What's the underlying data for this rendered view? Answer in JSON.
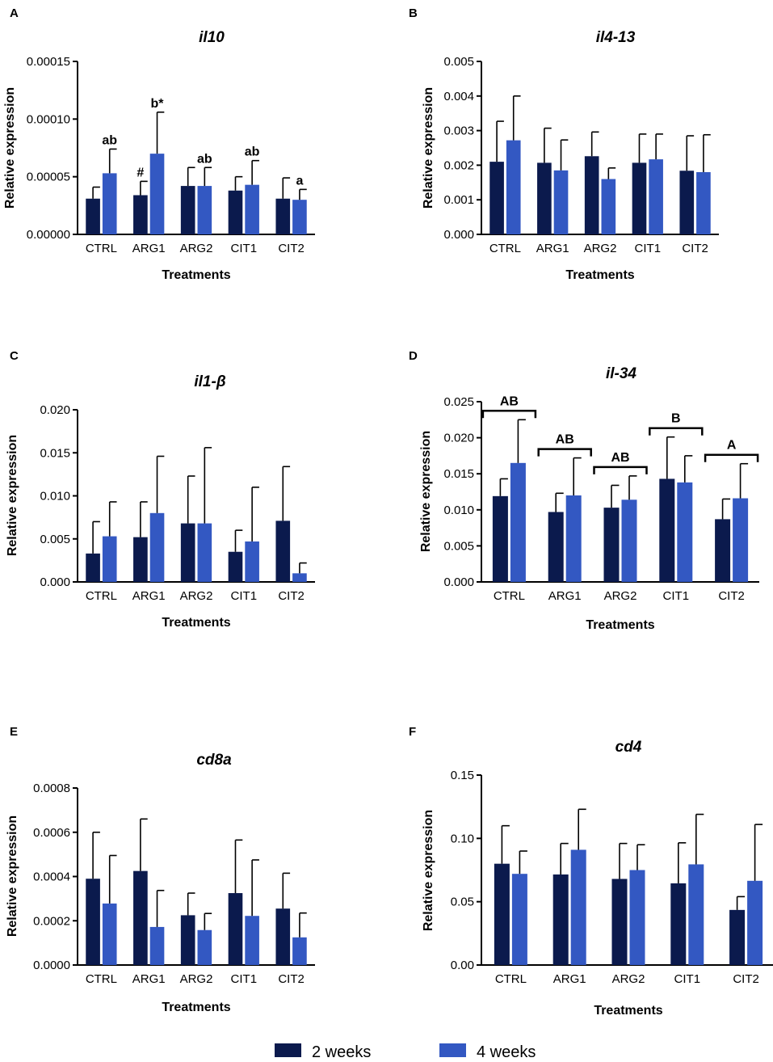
{
  "colors": {
    "two_weeks": "#0b1a4d",
    "four_weeks": "#3358c2",
    "axis": "#000000"
  },
  "chart_data": [
    {
      "panel": "A",
      "type": "bar",
      "title": "il10",
      "xlabel": "Treatments",
      "ylabel": "Relative expression",
      "categories": [
        "CTRL",
        "ARG1",
        "ARG2",
        "CIT1",
        "CIT2"
      ],
      "ylim": [
        0,
        0.00015
      ],
      "yticks": [
        "0.00000",
        "0.00005",
        "0.00010",
        "0.00015"
      ],
      "series": [
        {
          "name": "2 weeks",
          "values": [
            3.1e-05,
            3.4e-05,
            4.2e-05,
            3.8e-05,
            3.1e-05
          ],
          "errors": [
            1e-05,
            1.2e-05,
            1.6e-05,
            1.2e-05,
            1.8e-05
          ]
        },
        {
          "name": "4 weeks",
          "values": [
            5.3e-05,
            7e-05,
            4.2e-05,
            4.3e-05,
            3e-05
          ],
          "errors": [
            2.1e-05,
            3.6e-05,
            1.6e-05,
            2.1e-05,
            9e-06
          ]
        }
      ],
      "annotations": [
        {
          "category": "CTRL",
          "series": "4 weeks",
          "text": "ab"
        },
        {
          "category": "ARG1",
          "series": "2 weeks",
          "text": "#"
        },
        {
          "category": "ARG1",
          "series": "4 weeks",
          "text": "b*"
        },
        {
          "category": "ARG2",
          "series": "4 weeks",
          "text": "ab"
        },
        {
          "category": "CIT1",
          "series": "4 weeks",
          "text": "ab"
        },
        {
          "category": "CIT2",
          "series": "4 weeks",
          "text": "a"
        }
      ]
    },
    {
      "panel": "B",
      "type": "bar",
      "title": "il4-13",
      "xlabel": "Treatments",
      "ylabel": "Relative expression",
      "categories": [
        "CTRL",
        "ARG1",
        "ARG2",
        "CIT1",
        "CIT2"
      ],
      "ylim": [
        0,
        0.005
      ],
      "yticks": [
        "0.000",
        "0.001",
        "0.002",
        "0.003",
        "0.004",
        "0.005"
      ],
      "series": [
        {
          "name": "2 weeks",
          "values": [
            0.0021,
            0.00207,
            0.00226,
            0.00207,
            0.00184
          ],
          "errors": [
            0.00117,
            0.001,
            0.0007,
            0.00083,
            0.00101
          ]
        },
        {
          "name": "4 weeks",
          "values": [
            0.00272,
            0.00185,
            0.0016,
            0.00217,
            0.0018
          ],
          "errors": [
            0.00128,
            0.00088,
            0.00032,
            0.00073,
            0.00108
          ]
        }
      ],
      "annotations": []
    },
    {
      "panel": "C",
      "type": "bar",
      "title": "il1-β",
      "xlabel": "Treatments",
      "ylabel": "Relative expression",
      "categories": [
        "CTRL",
        "ARG1",
        "ARG2",
        "CIT1",
        "CIT2"
      ],
      "ylim": [
        0,
        0.02
      ],
      "yticks": [
        "0.000",
        "0.005",
        "0.010",
        "0.015",
        "0.020"
      ],
      "series": [
        {
          "name": "2 weeks",
          "values": [
            0.0033,
            0.0052,
            0.0068,
            0.0035,
            0.0071
          ],
          "errors": [
            0.0037,
            0.0041,
            0.0055,
            0.0025,
            0.0063
          ]
        },
        {
          "name": "4 weeks",
          "values": [
            0.0053,
            0.008,
            0.0068,
            0.0047,
            0.001
          ],
          "errors": [
            0.004,
            0.0066,
            0.0088,
            0.0063,
            0.0012
          ]
        }
      ],
      "annotations": []
    },
    {
      "panel": "D",
      "type": "bar",
      "title": "il-34",
      "xlabel": "Treatments",
      "ylabel": "Relative expression",
      "categories": [
        "CTRL",
        "ARG1",
        "ARG2",
        "CIT1",
        "CIT2"
      ],
      "ylim": [
        0,
        0.025
      ],
      "yticks": [
        "0.000",
        "0.005",
        "0.010",
        "0.015",
        "0.020",
        "0.025"
      ],
      "series": [
        {
          "name": "2 weeks",
          "values": [
            0.0119,
            0.0097,
            0.0103,
            0.0143,
            0.0087
          ],
          "errors": [
            0.0024,
            0.0026,
            0.0031,
            0.0058,
            0.0028
          ]
        },
        {
          "name": "4 weeks",
          "values": [
            0.0165,
            0.012,
            0.0114,
            0.0138,
            0.0116
          ],
          "errors": [
            0.006,
            0.0052,
            0.0033,
            0.0037,
            0.0048
          ]
        }
      ],
      "group_annotations": [
        {
          "category": "CTRL",
          "text": "AB"
        },
        {
          "category": "ARG1",
          "text": "AB"
        },
        {
          "category": "ARG2",
          "text": "AB"
        },
        {
          "category": "CIT1",
          "text": "B"
        },
        {
          "category": "CIT2",
          "text": "A"
        }
      ]
    },
    {
      "panel": "E",
      "type": "bar",
      "title": "cd8a",
      "xlabel": "Treatments",
      "ylabel": "Relative expression",
      "categories": [
        "CTRL",
        "ARG1",
        "ARG2",
        "CIT1",
        "CIT2"
      ],
      "ylim": [
        0,
        0.0008
      ],
      "yticks": [
        "0.0000",
        "0.0002",
        "0.0004",
        "0.0006",
        "0.0008"
      ],
      "series": [
        {
          "name": "2 weeks",
          "values": [
            0.00039,
            0.000425,
            0.000225,
            0.000325,
            0.000255
          ],
          "errors": [
            0.00021,
            0.000235,
            0.0001,
            0.00024,
            0.00016
          ]
        },
        {
          "name": "4 weeks",
          "values": [
            0.000278,
            0.000172,
            0.000158,
            0.000222,
            0.000125
          ],
          "errors": [
            0.000217,
            0.000165,
            7.5e-05,
            0.000253,
            0.00011
          ]
        }
      ],
      "annotations": []
    },
    {
      "panel": "F",
      "type": "bar",
      "title": "cd4",
      "xlabel": "Treatments",
      "ylabel": "Relative expression",
      "categories": [
        "CTRL",
        "ARG1",
        "ARG2",
        "CIT1",
        "CIT2"
      ],
      "ylim": [
        0,
        0.15
      ],
      "yticks": [
        "0.00",
        "0.05",
        "0.10",
        "0.15"
      ],
      "series": [
        {
          "name": "2 weeks",
          "values": [
            0.08,
            0.0715,
            0.068,
            0.0645,
            0.0435
          ],
          "errors": [
            0.03,
            0.0245,
            0.028,
            0.032,
            0.0105
          ]
        },
        {
          "name": "4 weeks",
          "values": [
            0.072,
            0.091,
            0.075,
            0.0795,
            0.0665
          ],
          "errors": [
            0.018,
            0.032,
            0.02,
            0.0395,
            0.0445
          ]
        }
      ],
      "annotations": []
    }
  ],
  "legend": [
    {
      "label": "2 weeks"
    },
    {
      "label": "4 weeks"
    }
  ]
}
